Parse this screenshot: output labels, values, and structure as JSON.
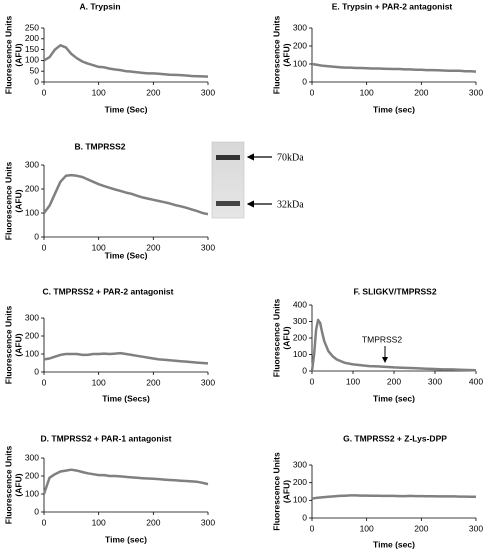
{
  "chart_data": [
    {
      "type": "line",
      "title": "A. Trypsin",
      "ylabel": [
        "Fluorescence Units",
        "(AFU)"
      ],
      "xlabel": "Time (Sec)",
      "x": [
        0,
        10,
        20,
        30,
        40,
        50,
        60,
        70,
        80,
        90,
        100,
        110,
        120,
        130,
        140,
        150,
        160,
        170,
        180,
        190,
        200,
        210,
        220,
        230,
        240,
        250,
        260,
        270,
        280,
        290,
        300
      ],
      "values": [
        100,
        115,
        150,
        170,
        160,
        130,
        110,
        95,
        85,
        78,
        70,
        68,
        62,
        58,
        55,
        50,
        48,
        45,
        42,
        40,
        40,
        38,
        36,
        34,
        33,
        32,
        30,
        28,
        27,
        26,
        25
      ],
      "color": "#808080",
      "xlim": [
        0,
        300
      ],
      "xticks": [
        0,
        100,
        200,
        300
      ],
      "ylim": [
        0,
        250
      ],
      "yticks": [
        0,
        50,
        100,
        150,
        200,
        250
      ]
    },
    {
      "type": "line",
      "title": "E. Trypsin + PAR-2 antagonist",
      "ylabel": [
        "Fluorescence Units",
        "(AFU)"
      ],
      "xlabel": "Time (sec)",
      "x": [
        0,
        10,
        20,
        30,
        40,
        50,
        60,
        70,
        80,
        90,
        100,
        110,
        120,
        130,
        140,
        150,
        160,
        170,
        180,
        190,
        200,
        210,
        220,
        230,
        240,
        250,
        260,
        270,
        280,
        290,
        300
      ],
      "values": [
        100,
        95,
        90,
        88,
        85,
        82,
        80,
        80,
        78,
        78,
        76,
        75,
        75,
        74,
        73,
        72,
        72,
        70,
        70,
        68,
        68,
        66,
        66,
        65,
        64,
        63,
        62,
        62,
        60,
        60,
        58
      ],
      "color": "#808080",
      "xlim": [
        0,
        300
      ],
      "xticks": [
        0,
        100,
        200,
        300
      ],
      "ylim": [
        0,
        300
      ],
      "yticks": [
        0,
        100,
        200,
        300
      ]
    },
    {
      "type": "line",
      "title": "B. TMPRSS2",
      "ylabel": [
        "Fluorescence Units",
        "(AFU)"
      ],
      "xlabel": "Time (Sec)",
      "x": [
        0,
        10,
        20,
        30,
        40,
        50,
        60,
        70,
        80,
        90,
        100,
        110,
        120,
        130,
        140,
        150,
        160,
        170,
        180,
        190,
        200,
        210,
        220,
        230,
        240,
        250,
        260,
        270,
        280,
        290,
        300
      ],
      "values": [
        100,
        130,
        180,
        230,
        255,
        258,
        255,
        250,
        240,
        230,
        220,
        212,
        205,
        198,
        192,
        185,
        180,
        172,
        165,
        160,
        155,
        150,
        145,
        140,
        133,
        128,
        122,
        115,
        108,
        100,
        95
      ],
      "color": "#808080",
      "xlim": [
        0,
        300
      ],
      "xticks": [
        0,
        100,
        200,
        300
      ],
      "ylim": [
        0,
        300
      ],
      "yticks": [
        0,
        100,
        200,
        300
      ]
    },
    {
      "type": "line",
      "title": "C. TMPRSS2 + PAR-2 antagonist",
      "ylabel": [
        "Fluorescence Units",
        "(AFU)"
      ],
      "xlabel": "Time (Secs)",
      "x": [
        0,
        10,
        20,
        30,
        40,
        50,
        60,
        70,
        80,
        90,
        100,
        110,
        120,
        130,
        140,
        150,
        160,
        170,
        180,
        190,
        200,
        210,
        220,
        230,
        240,
        250,
        260,
        270,
        280,
        290,
        300
      ],
      "values": [
        70,
        75,
        85,
        95,
        100,
        100,
        100,
        95,
        95,
        100,
        100,
        102,
        100,
        102,
        105,
        100,
        95,
        90,
        85,
        80,
        75,
        70,
        68,
        65,
        62,
        60,
        58,
        55,
        52,
        50,
        48
      ],
      "color": "#808080",
      "xlim": [
        0,
        300
      ],
      "xticks": [
        0,
        100,
        200,
        300
      ],
      "ylim": [
        0,
        300
      ],
      "yticks": [
        0,
        100,
        200,
        300
      ]
    },
    {
      "type": "line",
      "title": "F. SLIGKV/TMPRSS2",
      "ylabel": [
        "Fluorescence Units",
        "(AFU)"
      ],
      "xlabel": "Time (sec)",
      "annotation": "TMPRSS2",
      "x": [
        0,
        5,
        10,
        15,
        20,
        25,
        30,
        40,
        50,
        60,
        70,
        80,
        100,
        120,
        140,
        160,
        180,
        200,
        220,
        240,
        260,
        280,
        300,
        320,
        340,
        360,
        380,
        400
      ],
      "values": [
        0,
        100,
        250,
        310,
        290,
        230,
        180,
        120,
        90,
        70,
        60,
        50,
        40,
        35,
        30,
        28,
        25,
        22,
        20,
        18,
        16,
        14,
        12,
        10,
        10,
        8,
        6,
        5
      ],
      "color": "#808080",
      "xlim": [
        0,
        400
      ],
      "xticks": [
        0,
        100,
        200,
        300,
        400
      ],
      "ylim": [
        0,
        400
      ],
      "yticks": [
        0,
        100,
        200,
        300,
        400
      ]
    },
    {
      "type": "line",
      "title": "D. TMPRSS2 + PAR-1 antagonist",
      "ylabel": [
        "Fluorescence Units",
        "(AFU)"
      ],
      "xlabel": "Time (sec)",
      "x": [
        0,
        10,
        20,
        30,
        40,
        50,
        60,
        70,
        80,
        90,
        100,
        110,
        120,
        130,
        140,
        150,
        160,
        170,
        180,
        190,
        200,
        210,
        220,
        230,
        240,
        250,
        260,
        270,
        280,
        290,
        300
      ],
      "values": [
        100,
        190,
        210,
        225,
        230,
        235,
        230,
        222,
        215,
        210,
        205,
        205,
        200,
        200,
        198,
        195,
        192,
        190,
        188,
        186,
        185,
        183,
        180,
        178,
        176,
        174,
        172,
        170,
        168,
        162,
        155
      ],
      "color": "#808080",
      "xlim": [
        0,
        300
      ],
      "xticks": [
        0,
        100,
        200,
        300
      ],
      "ylim": [
        0,
        300
      ],
      "yticks": [
        0,
        100,
        200,
        300
      ]
    },
    {
      "type": "line",
      "title": "G. TMPRSS2 + Z-Lys-DPP",
      "ylabel": [
        "Fluorescence Units",
        "(AFU)"
      ],
      "xlabel": "Time (sec)",
      "x": [
        0,
        10,
        20,
        30,
        40,
        50,
        60,
        70,
        80,
        90,
        100,
        110,
        120,
        130,
        140,
        150,
        160,
        170,
        180,
        190,
        200,
        210,
        220,
        230,
        240,
        250,
        260,
        270,
        280,
        290,
        300
      ],
      "values": [
        110,
        115,
        118,
        120,
        122,
        125,
        126,
        128,
        128,
        127,
        127,
        126,
        126,
        125,
        125,
        125,
        124,
        124,
        125,
        124,
        124,
        123,
        123,
        122,
        122,
        122,
        122,
        121,
        121,
        120,
        120
      ],
      "color": "#808080",
      "xlim": [
        0,
        300
      ],
      "xticks": [
        0,
        100,
        200,
        300
      ],
      "ylim": [
        0,
        300
      ],
      "yticks": [
        0,
        100,
        200,
        300
      ]
    }
  ],
  "gel": {
    "labels": [
      "70kDa",
      "32kDa"
    ]
  }
}
